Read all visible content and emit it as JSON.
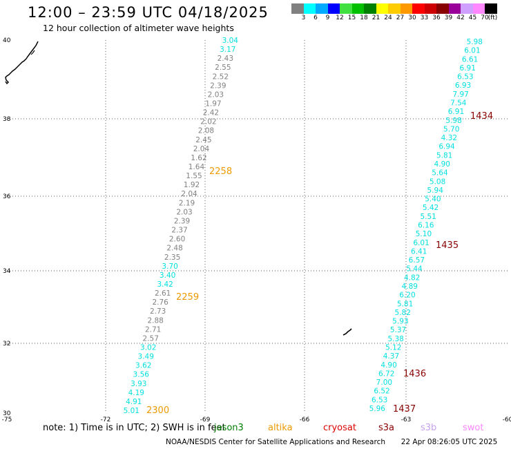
{
  "header": {
    "title": "12:00 – 23:59 UTC 04/18/2025",
    "subtitle": "12 hour collection of altimeter wave heights"
  },
  "colorbar": {
    "colors": [
      "#808080",
      "#00ffff",
      "#00aaff",
      "#0000ff",
      "#40e040",
      "#00c000",
      "#008000",
      "#ffff00",
      "#ffcc00",
      "#ff9900",
      "#ff0000",
      "#cc0000",
      "#880000",
      "#990099",
      "#d0a0ff",
      "#ff88ff",
      "#000000"
    ],
    "labels": [
      "3",
      "6",
      "9",
      "12",
      "15",
      "18",
      "21",
      "24",
      "27",
      "30",
      "33",
      "36",
      "39",
      "42",
      "45",
      "70",
      "(ft)"
    ]
  },
  "map": {
    "lat_ticks": [
      "40",
      "38",
      "36",
      "34",
      "32",
      "30"
    ],
    "lon_ticks": [
      "-75",
      "-72",
      "-69",
      "-66",
      "-63",
      "-60"
    ],
    "track_left": {
      "heights": [
        "3.04",
        "3.17",
        "2.43",
        "2.55",
        "2.52",
        "2.39",
        "2.03",
        "1.97",
        "2.42",
        "2.02",
        "2.08",
        "2.45",
        "2.04",
        "1.62",
        "1.64",
        "1.55",
        "1.92",
        "2.04",
        "2.19",
        "2.03",
        "2.39",
        "2.37",
        "2.60",
        "2.48",
        "2.35",
        "3.70",
        "3.40",
        "3.42",
        "2.61",
        "2.76",
        "2.73",
        "2.88",
        "2.71",
        "2.57",
        "3.02",
        "3.49",
        "3.62",
        "3.56",
        "3.93",
        "4.19",
        "4.91",
        "5.01"
      ],
      "colors": [
        "#00e0e0",
        "#00e0e0",
        "#808080",
        "#808080",
        "#808080",
        "#808080",
        "#808080",
        "#808080",
        "#808080",
        "#808080",
        "#808080",
        "#808080",
        "#808080",
        "#808080",
        "#808080",
        "#808080",
        "#808080",
        "#808080",
        "#808080",
        "#808080",
        "#808080",
        "#808080",
        "#808080",
        "#808080",
        "#808080",
        "#00e0e0",
        "#00e0e0",
        "#00e0e0",
        "#808080",
        "#808080",
        "#808080",
        "#808080",
        "#808080",
        "#808080",
        "#00e0e0",
        "#00e0e0",
        "#00e0e0",
        "#00e0e0",
        "#00e0e0",
        "#00e0e0",
        "#00e0e0",
        "#00e0e0"
      ],
      "times": [
        {
          "label": "2258",
          "color": "#ee9900"
        },
        {
          "label": "2259",
          "color": "#ee9900"
        },
        {
          "label": "2300",
          "color": "#ee9900"
        }
      ]
    },
    "track_right": {
      "heights": [
        "5.98",
        "6.01",
        "6.61",
        "6.91",
        "6.53",
        "6.93",
        "7.97",
        "7.54",
        "6.91",
        "5.98",
        "5.70",
        "4.32",
        "6.94",
        "5.81",
        "4.90",
        "5.64",
        "5.08",
        "5.94",
        "5.40",
        "5.42",
        "5.51",
        "6.16",
        "5.10",
        "6.01",
        "6.41",
        "6.57",
        "5.44",
        "4.82",
        "4.89",
        "6.20",
        "5.81",
        "5.82",
        "5.93",
        "5.37",
        "5.38",
        "5.12",
        "4.37",
        "4.90",
        "6.72",
        "7.00",
        "6.52",
        "6.53",
        "5.96"
      ],
      "colors": [
        "#00e0e0",
        "#00e0e0",
        "#00e0e0",
        "#00e0e0",
        "#00e0e0",
        "#00e0e0",
        "#00e0e0",
        "#00e0e0",
        "#00e0e0",
        "#00e0e0",
        "#00e0e0",
        "#00e0e0",
        "#00e0e0",
        "#00e0e0",
        "#00e0e0",
        "#00e0e0",
        "#00e0e0",
        "#00e0e0",
        "#00e0e0",
        "#00e0e0",
        "#00e0e0",
        "#00e0e0",
        "#00e0e0",
        "#00e0e0",
        "#00e0e0",
        "#00e0e0",
        "#00e0e0",
        "#00e0e0",
        "#00e0e0",
        "#00e0e0",
        "#00e0e0",
        "#00e0e0",
        "#00e0e0",
        "#00e0e0",
        "#00e0e0",
        "#00e0e0",
        "#00e0e0",
        "#00e0e0",
        "#00e0e0",
        "#00e0e0",
        "#00e0e0",
        "#00e0e0",
        "#00e0e0"
      ],
      "times": [
        {
          "label": "1434",
          "color": "#880000"
        },
        {
          "label": "1435",
          "color": "#880000"
        },
        {
          "label": "1436",
          "color": "#880000"
        },
        {
          "label": "1437",
          "color": "#880000"
        }
      ]
    }
  },
  "note": {
    "prefix": "note:  1) Time is in UTC;  2) SWH is in feet",
    "sat_jason": "jason3",
    "sat_altika": "altika",
    "sat_cryosat": "cryosat",
    "sat_s3a": "s3a",
    "sat_s3b": "s3b",
    "sat_swot": "swot",
    "colors": {
      "jason": "#008000",
      "altika": "#ee9900",
      "cryosat": "#dd0000",
      "s3a": "#880000",
      "s3b": "#c8a0f0",
      "swot": "#ff88ff"
    }
  },
  "footer": {
    "credit": "NOAA/NESDIS Center for Satellite Applications and Research",
    "timestamp": "22 Apr 08:26:05 UTC 2025"
  }
}
